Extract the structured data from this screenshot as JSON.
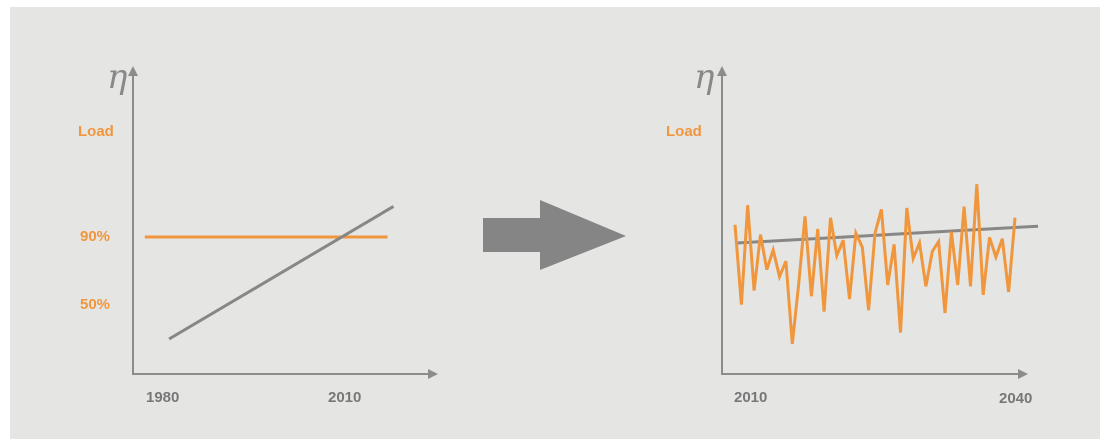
{
  "colors": {
    "background": "#e5e5e4",
    "axis": "#8c8c8c",
    "orange": "#f0963c",
    "gray_line": "#878787",
    "arrow": "#858585"
  },
  "left_chart": {
    "symbol": "η",
    "ylabel": "Load",
    "ytick_90": "90%",
    "ytick_50": "50%",
    "xticks": [
      "1980",
      "2010"
    ]
  },
  "right_chart": {
    "symbol": "η",
    "ylabel": "Load",
    "xticks": [
      "2010",
      "2040"
    ]
  },
  "arrow": {
    "icon": "right-arrow-icon"
  },
  "chart_data": [
    {
      "type": "line",
      "series": [
        {
          "color": "orange",
          "x": [
            1977,
            2017
          ],
          "y": [
            90,
            90
          ]
        },
        {
          "color": "gray",
          "x": [
            1981,
            2018
          ],
          "y": [
            30,
            108
          ]
        }
      ],
      "xticks": [
        "1980",
        "2010"
      ],
      "yticks": [
        "90%",
        "50%"
      ],
      "ylabel": "Load"
    },
    {
      "type": "line",
      "series": [
        {
          "color": "orange",
          "values": [
            0.58,
            0.01,
            0.72,
            0.11,
            0.51,
            0.26,
            0.4,
            0.21,
            0.32,
            -0.27,
            0.15,
            0.64,
            0.07,
            0.55,
            -0.04,
            0.63,
            0.36,
            0.47,
            0.05,
            0.52,
            0.42,
            -0.03,
            0.52,
            0.69,
            0.15,
            0.44,
            -0.19,
            0.7,
            0.34,
            0.45,
            0.14,
            0.39,
            0.46,
            -0.05,
            0.53,
            0.15,
            0.71,
            0.14,
            0.87,
            0.08,
            0.49,
            0.35,
            0.48,
            0.1,
            0.63
          ]
        },
        {
          "color": "gray",
          "values": [
            0.45,
            0.57
          ]
        }
      ],
      "xticks": [
        "2010",
        "2040"
      ],
      "ylabel": "Load"
    }
  ]
}
